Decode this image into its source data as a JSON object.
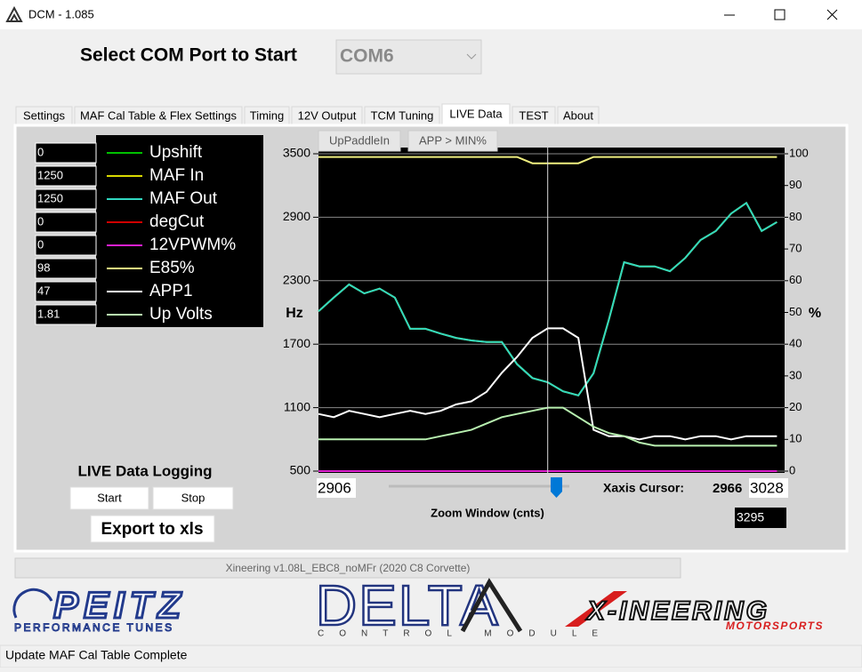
{
  "window": {
    "title": "DCM - 1.085"
  },
  "header": {
    "prompt": "Select COM Port to Start",
    "com_port": "COM6"
  },
  "tabs": [
    "Settings",
    "MAF Cal Table & Flex Settings",
    "Timing",
    "12V Output",
    "TCM Tuning",
    "LIVE Data",
    "TEST",
    "About"
  ],
  "active_tab": 5,
  "chart_buttons": [
    "UpPaddleIn",
    "APP > MIN%"
  ],
  "chart_data": {
    "type": "line",
    "ylabel": "Hz",
    "y2label": "%",
    "x": [
      2906,
      2910,
      2914,
      2918,
      2922,
      2926,
      2930,
      2934,
      2938,
      2942,
      2946,
      2950,
      2954,
      2958,
      2962,
      2966,
      2970,
      2974,
      2978,
      2982,
      2986,
      2990,
      2994,
      2998,
      3002,
      3006,
      3010,
      3014,
      3018,
      3022,
      3026
    ],
    "xlim": [
      2906,
      3028
    ],
    "ylim": [
      500,
      3500
    ],
    "yticks": [
      500,
      1100,
      1700,
      2300,
      2900,
      3500
    ],
    "y2lim": [
      0,
      100
    ],
    "y2ticks": [
      0,
      10,
      20,
      30,
      40,
      50,
      60,
      70,
      80,
      90,
      100
    ],
    "grid": true,
    "cursor": {
      "label": "Xaxis Cursor:",
      "x": 2966
    },
    "zoom": {
      "label": "Zoom Window (cnts)",
      "value": 3295
    },
    "series": [
      {
        "name": "Upshift",
        "color": "#00c000",
        "axis": "y2",
        "current": 0,
        "values": [
          0,
          0,
          0,
          0,
          0,
          0,
          0,
          0,
          0,
          0,
          0,
          0,
          0,
          0,
          0,
          0,
          0,
          0,
          0,
          0,
          0,
          0,
          0,
          0,
          0,
          0,
          0,
          0,
          0,
          0,
          0
        ]
      },
      {
        "name": "MAF In",
        "color": "#d8d800",
        "current": 1250,
        "values": [
          2010,
          2140,
          2265,
          2180,
          2225,
          2140,
          1845,
          1845,
          1800,
          1760,
          1735,
          1720,
          1720,
          1510,
          1380,
          1340,
          1255,
          1215,
          1425,
          1930,
          2475,
          2435,
          2435,
          2390,
          2515,
          2685,
          2770,
          2935,
          3035,
          2770,
          2855
        ]
      },
      {
        "name": "MAF Out",
        "color": "#30d8c0",
        "current": 1250,
        "values": [
          2010,
          2140,
          2265,
          2180,
          2225,
          2140,
          1845,
          1845,
          1800,
          1760,
          1735,
          1720,
          1720,
          1510,
          1380,
          1340,
          1255,
          1215,
          1425,
          1930,
          2475,
          2435,
          2435,
          2390,
          2515,
          2685,
          2770,
          2935,
          3035,
          2770,
          2855
        ]
      },
      {
        "name": "degCut",
        "color": "#d00000",
        "axis": "y2",
        "current": 0,
        "values": [
          0,
          0,
          0,
          0,
          0,
          0,
          0,
          0,
          0,
          0,
          0,
          0,
          0,
          0,
          0,
          0,
          0,
          0,
          0,
          0,
          0,
          0,
          0,
          0,
          0,
          0,
          0,
          0,
          0,
          0,
          0
        ]
      },
      {
        "name": "12VPWM%",
        "color": "#e020d0",
        "axis": "y2",
        "current": 0,
        "values": [
          0,
          0,
          0,
          0,
          0,
          0,
          0,
          0,
          0,
          0,
          0,
          0,
          0,
          0,
          0,
          0,
          0,
          0,
          0,
          0,
          0,
          0,
          0,
          0,
          0,
          0,
          0,
          0,
          0,
          0,
          0
        ]
      },
      {
        "name": "E85%",
        "color": "#f0f080",
        "axis": "y2",
        "current": 98,
        "values": [
          99,
          99,
          99,
          99,
          99,
          99,
          99,
          99,
          99,
          99,
          99,
          99,
          99,
          99,
          97,
          97,
          97,
          97,
          99,
          99,
          99,
          99,
          99,
          99,
          99,
          99,
          99,
          99,
          99,
          99,
          99
        ]
      },
      {
        "name": "APP1",
        "color": "#ffffff",
        "axis": "y2",
        "current": 47,
        "values": [
          18,
          17,
          19,
          18,
          17,
          18,
          19,
          18,
          19,
          21,
          22,
          25,
          31,
          36,
          42,
          45,
          45,
          42,
          13,
          11,
          11,
          10,
          11,
          11,
          10,
          11,
          11,
          10,
          11,
          11,
          11
        ]
      },
      {
        "name": "Up Volts",
        "color": "#b8f0b0",
        "axis": "y2",
        "current": 1.81,
        "values": [
          10,
          10,
          10,
          10,
          10,
          10,
          10,
          10,
          11,
          12,
          13,
          15,
          17,
          18,
          19,
          20,
          20,
          17,
          14,
          12,
          11,
          9,
          8,
          8,
          8,
          8,
          8,
          8,
          8,
          8,
          8
        ]
      }
    ]
  },
  "logging": {
    "title": "LIVE Data Logging",
    "start": "Start",
    "stop": "Stop",
    "export": "Export to xls"
  },
  "version": "Xineering v1.08L_EBC8_noMFr (2020 C8 Corvette)",
  "logos": {
    "peitz": "PEITZ",
    "peitz_sub": "PERFORMANCE TUNES",
    "delta": "DELTA",
    "delta_sub": "CONTROL MODULE",
    "xineering": "X-INEERING",
    "xineering_sub": "MOTORSPORTS"
  },
  "status": "Update MAF Cal Table Complete"
}
